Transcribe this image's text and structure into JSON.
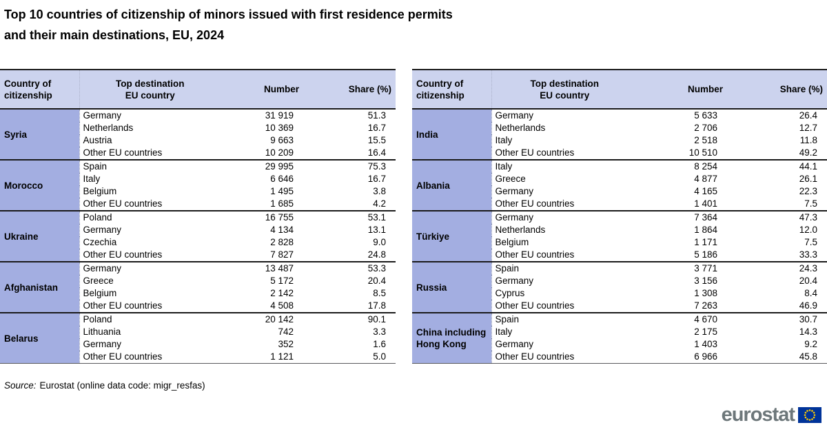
{
  "title": {
    "line1": "Top 10 countries of citizenship of minors issued with first residence permits",
    "line2": "and their main destinations, EU, 2024"
  },
  "source": {
    "label": "Source:",
    "text": "Eurostat (online data code: migr_resfas)"
  },
  "logo": {
    "text": "eurostat",
    "flag_color": "#003399",
    "star_color": "#FFCC00"
  },
  "colors": {
    "header_bg": "#CCD3EE",
    "citizenship_bg": "#A3AEE1",
    "border_dark": "#1A1A1A",
    "logo_gray": "#6D777A"
  },
  "chart_data": {
    "type": "table",
    "title": "Top 10 countries of citizenship of minors issued with first residence permits and their main destinations, EU, 2024",
    "columns": {
      "citizenship": [
        "Country of",
        "citizenship"
      ],
      "destination": [
        "Top destination",
        "EU country"
      ],
      "number": "Number",
      "share": "Share (%)"
    },
    "tables": [
      {
        "groups": [
          {
            "citizenship": "Syria",
            "rows": [
              [
                "Germany",
                "31 919",
                "51.3"
              ],
              [
                "Netherlands",
                "10 369",
                "16.7"
              ],
              [
                "Austria",
                "9 663",
                "15.5"
              ],
              [
                "Other EU countries",
                "10 209",
                "16.4"
              ]
            ]
          },
          {
            "citizenship": "Morocco",
            "rows": [
              [
                "Spain",
                "29 995",
                "75.3"
              ],
              [
                "Italy",
                "6 646",
                "16.7"
              ],
              [
                "Belgium",
                "1 495",
                "3.8"
              ],
              [
                "Other EU countries",
                "1 685",
                "4.2"
              ]
            ]
          },
          {
            "citizenship": "Ukraine",
            "rows": [
              [
                "Poland",
                "16 755",
                "53.1"
              ],
              [
                "Germany",
                "4 134",
                "13.1"
              ],
              [
                "Czechia",
                "2 828",
                "9.0"
              ],
              [
                "Other EU countries",
                "7 827",
                "24.8"
              ]
            ]
          },
          {
            "citizenship": "Afghanistan",
            "rows": [
              [
                "Germany",
                "13 487",
                "53.3"
              ],
              [
                "Greece",
                "5 172",
                "20.4"
              ],
              [
                "Belgium",
                "2 142",
                "8.5"
              ],
              [
                "Other EU countries",
                "4 508",
                "17.8"
              ]
            ]
          },
          {
            "citizenship": "Belarus",
            "rows": [
              [
                "Poland",
                "20 142",
                "90.1"
              ],
              [
                "Lithuania",
                "742",
                "3.3"
              ],
              [
                "Germany",
                "352",
                "1.6"
              ],
              [
                "Other EU countries",
                "1 121",
                "5.0"
              ]
            ]
          }
        ]
      },
      {
        "groups": [
          {
            "citizenship": "India",
            "rows": [
              [
                "Germany",
                "5 633",
                "26.4"
              ],
              [
                "Netherlands",
                "2 706",
                "12.7"
              ],
              [
                "Italy",
                "2 518",
                "11.8"
              ],
              [
                "Other EU countries",
                "10 510",
                "49.2"
              ]
            ]
          },
          {
            "citizenship": "Albania",
            "rows": [
              [
                "Italy",
                "8 254",
                "44.1"
              ],
              [
                "Greece",
                "4 877",
                "26.1"
              ],
              [
                "Germany",
                "4 165",
                "22.3"
              ],
              [
                "Other EU countries",
                "1 401",
                "7.5"
              ]
            ]
          },
          {
            "citizenship": "Türkiye",
            "rows": [
              [
                "Germany",
                "7 364",
                "47.3"
              ],
              [
                "Netherlands",
                "1 864",
                "12.0"
              ],
              [
                "Belgium",
                "1 171",
                "7.5"
              ],
              [
                "Other EU countries",
                "5 186",
                "33.3"
              ]
            ]
          },
          {
            "citizenship": "Russia",
            "rows": [
              [
                "Spain",
                "3 771",
                "24.3"
              ],
              [
                "Germany",
                "3 156",
                "20.4"
              ],
              [
                "Cyprus",
                "1 308",
                "8.4"
              ],
              [
                "Other EU countries",
                "7 263",
                "46.9"
              ]
            ]
          },
          {
            "citizenship": "China including Hong Kong",
            "rows": [
              [
                "Spain",
                "4 670",
                "30.7"
              ],
              [
                "Italy",
                "2 175",
                "14.3"
              ],
              [
                "Germany",
                "1 403",
                "9.2"
              ],
              [
                "Other EU countries",
                "6 966",
                "45.8"
              ]
            ]
          }
        ]
      }
    ]
  }
}
